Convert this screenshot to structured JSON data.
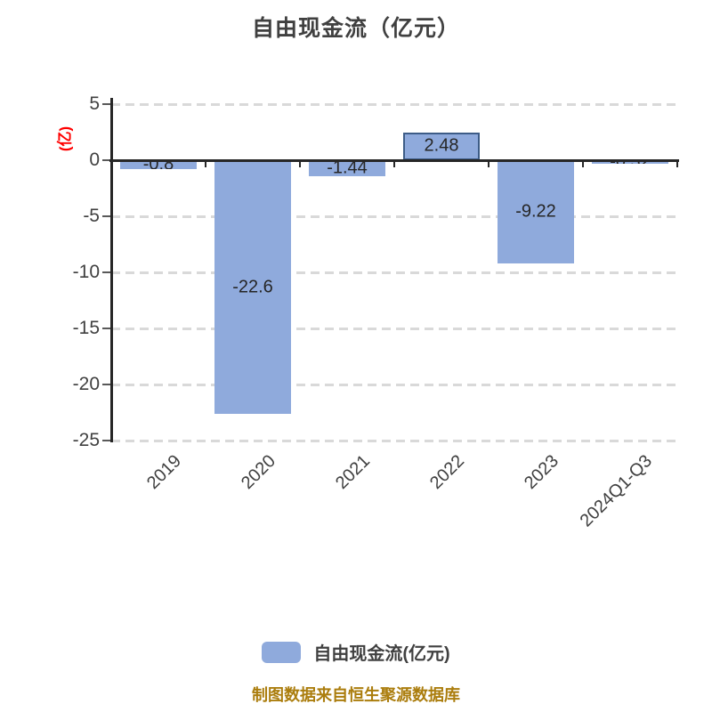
{
  "title": "自由现金流（亿元）",
  "chart_data": {
    "type": "bar",
    "title": "自由现金流（亿元）",
    "ylabel": "(亿)",
    "xlabel": "",
    "categories": [
      "2019",
      "2020",
      "2021",
      "2022",
      "2023",
      "2024Q1-Q3"
    ],
    "values": [
      -0.8,
      -22.6,
      -1.44,
      2.48,
      -9.22,
      -0.32
    ],
    "value_labels": [
      "-0.8",
      "-22.6",
      "-1.44",
      "2.48",
      "-9.22",
      "-0.32"
    ],
    "yticks": [
      5,
      0,
      -5,
      -10,
      -15,
      -20,
      -25
    ],
    "ylim": [
      -25,
      5
    ],
    "grid": "horizontal-dashed",
    "legend_position": "bottom",
    "legend_items": [
      {
        "label": "自由现金流(亿元)",
        "swatch_color": "#8FAADC"
      }
    ],
    "footer": "制图数据来自恒生聚源数据库"
  },
  "colors": {
    "bar_fill": "#8FAADC",
    "bar_border_positive": "#3D5C87",
    "grid": "#D9D9D9",
    "axis": "#262626",
    "tick_mark": "#595959",
    "title_text": "#404040",
    "tick_text": "#404040",
    "bar_label_text": "#262626",
    "ylabel_text": "#FF0000",
    "legend_text": "#404040",
    "footer_text": "#AB7D0D"
  }
}
